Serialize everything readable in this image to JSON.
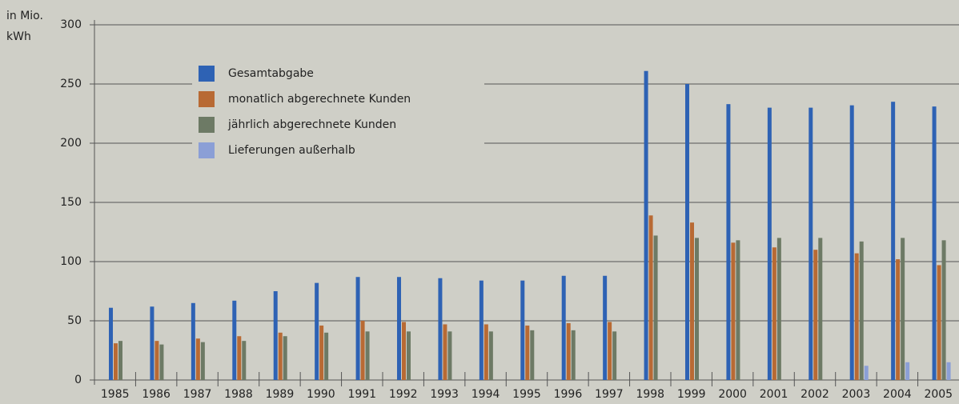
{
  "chart_data": {
    "type": "bar",
    "y_label": [
      "in Mio.",
      "kWh"
    ],
    "categories": [
      "1985",
      "1986",
      "1987",
      "1988",
      "1989",
      "1990",
      "1991",
      "1992",
      "1993",
      "1994",
      "1995",
      "1996",
      "1997",
      "1998",
      "1999",
      "2000",
      "2001",
      "2002",
      "2003",
      "2004",
      "2005"
    ],
    "series": [
      {
        "name": "Gesamtabgabe",
        "color": "#2e62b4",
        "values": [
          61,
          62,
          65,
          67,
          75,
          82,
          87,
          87,
          86,
          84,
          84,
          88,
          88,
          261,
          250,
          233,
          230,
          230,
          232,
          235,
          231
        ]
      },
      {
        "name": "monatlich abgerechnete Kunden",
        "color": "#b86a34",
        "values": [
          31,
          33,
          35,
          37,
          40,
          46,
          50,
          49,
          47,
          47,
          46,
          48,
          49,
          139,
          133,
          116,
          112,
          110,
          107,
          102,
          97
        ]
      },
      {
        "name": "jährlich abgerechnete Kunden",
        "color": "#6d7a65",
        "values": [
          33,
          30,
          32,
          33,
          37,
          40,
          41,
          41,
          41,
          41,
          42,
          42,
          41,
          122,
          120,
          118,
          120,
          120,
          117,
          120,
          118
        ]
      },
      {
        "name": "Lieferungen außerhalb",
        "color": "#8b9fd6",
        "values": [
          null,
          null,
          null,
          null,
          null,
          null,
          null,
          null,
          null,
          null,
          null,
          null,
          null,
          null,
          null,
          null,
          null,
          null,
          12,
          15,
          15
        ]
      }
    ],
    "ylim": [
      0,
      300
    ],
    "yticks": [
      0,
      50,
      100,
      150,
      200,
      250,
      300
    ],
    "grid": true
  }
}
